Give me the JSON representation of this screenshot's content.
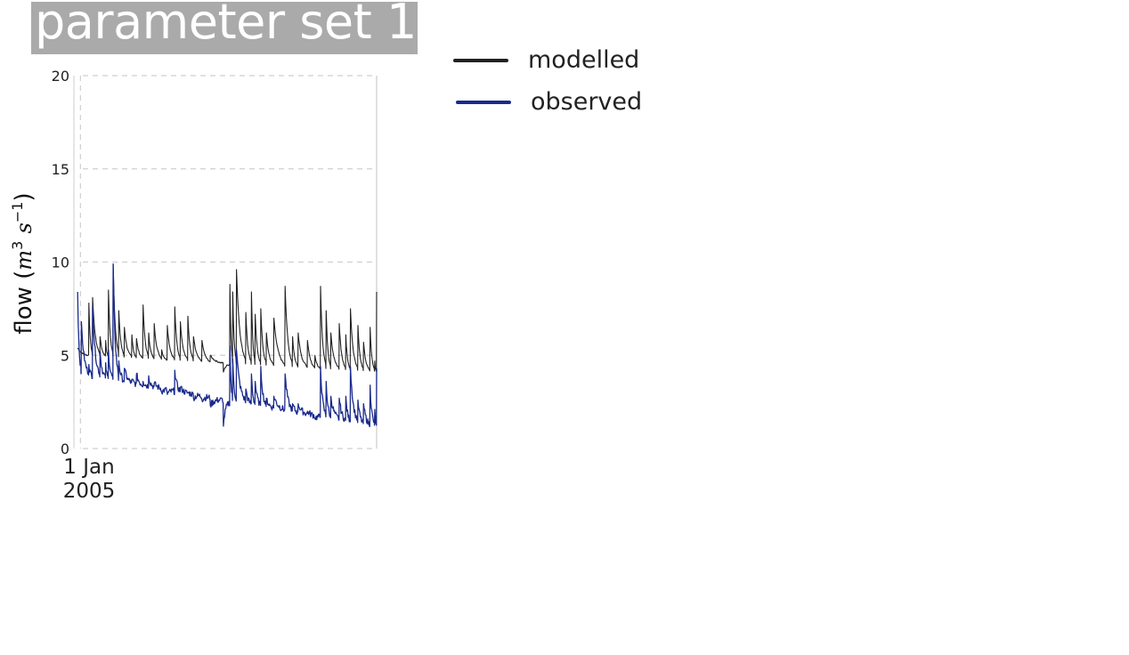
{
  "chart_data": {
    "type": "line",
    "title": "parameter set 1",
    "ylabel": {
      "prefix": "flow (",
      "unit1": "m",
      "exp1": "3",
      "unit2": "s",
      "exp2": "−1",
      "suffix": ")"
    },
    "ylim": [
      0,
      20
    ],
    "yticks": [
      0,
      5,
      10,
      15,
      20
    ],
    "xticks": [
      {
        "x": 3,
        "label": "1 Jan\n2005"
      }
    ],
    "xlim": [
      -4,
      320
    ],
    "grid": true,
    "legend_position": "outside-right",
    "series": [
      {
        "name": "modelled",
        "color": "#222222",
        "peaks": [
          [
            0,
            5.4
          ],
          [
            12,
            7.8
          ],
          [
            16,
            8.1
          ],
          [
            24,
            6.0
          ],
          [
            30,
            5.8
          ],
          [
            33,
            8.5
          ],
          [
            38,
            9.9
          ],
          [
            44,
            7.4
          ],
          [
            50,
            6.5
          ],
          [
            58,
            6.1
          ],
          [
            63,
            5.9
          ],
          [
            70,
            7.7
          ],
          [
            76,
            6.2
          ],
          [
            82,
            6.7
          ],
          [
            90,
            5.3
          ],
          [
            96,
            6.6
          ],
          [
            104,
            7.6
          ],
          [
            110,
            6.8
          ],
          [
            118,
            7.1
          ],
          [
            124,
            6.0
          ],
          [
            133,
            5.8
          ],
          [
            142,
            5.0
          ],
          [
            156,
            4.1
          ],
          [
            163,
            8.8
          ],
          [
            166,
            8.4
          ],
          [
            170,
            9.6
          ],
          [
            180,
            7.3
          ],
          [
            186,
            8.4
          ],
          [
            190,
            7.2
          ],
          [
            196,
            7.5
          ],
          [
            202,
            6.2
          ],
          [
            210,
            7.0
          ],
          [
            222,
            8.7
          ],
          [
            230,
            6.0
          ],
          [
            236,
            6.2
          ],
          [
            246,
            5.8
          ],
          [
            254,
            5.0
          ],
          [
            260,
            8.7
          ],
          [
            266,
            7.4
          ],
          [
            271,
            6.2
          ],
          [
            280,
            6.7
          ],
          [
            287,
            6.1
          ],
          [
            292,
            7.5
          ],
          [
            300,
            6.6
          ],
          [
            306,
            5.7
          ],
          [
            313,
            6.5
          ],
          [
            318,
            4.7
          ],
          [
            320,
            8.4
          ]
        ],
        "base_start": 5.0,
        "base_end": 4.1
      },
      {
        "name": "observed",
        "color": "#1a2a8c",
        "peaks": [
          [
            0,
            8.4
          ],
          [
            4,
            6.8
          ],
          [
            12,
            4.5
          ],
          [
            16,
            7.6
          ],
          [
            24,
            5.2
          ],
          [
            30,
            4.6
          ],
          [
            33,
            5.3
          ],
          [
            38,
            9.9
          ],
          [
            44,
            4.7
          ],
          [
            50,
            4.3
          ],
          [
            58,
            3.7
          ],
          [
            63,
            4.0
          ],
          [
            70,
            3.6
          ],
          [
            76,
            3.9
          ],
          [
            82,
            3.5
          ],
          [
            90,
            3.0
          ],
          [
            96,
            2.9
          ],
          [
            104,
            4.2
          ],
          [
            110,
            3.3
          ],
          [
            118,
            3.0
          ],
          [
            124,
            2.7
          ],
          [
            133,
            2.6
          ],
          [
            142,
            2.3
          ],
          [
            156,
            1.2
          ],
          [
            163,
            5.5
          ],
          [
            166,
            4.8
          ],
          [
            170,
            5.3
          ],
          [
            180,
            3.2
          ],
          [
            186,
            4.0
          ],
          [
            190,
            3.6
          ],
          [
            196,
            4.4
          ],
          [
            202,
            2.7
          ],
          [
            210,
            2.8
          ],
          [
            222,
            4.0
          ],
          [
            230,
            2.4
          ],
          [
            236,
            2.4
          ],
          [
            246,
            2.0
          ],
          [
            254,
            1.6
          ],
          [
            260,
            4.4
          ],
          [
            266,
            3.6
          ],
          [
            271,
            2.8
          ],
          [
            280,
            2.7
          ],
          [
            287,
            2.8
          ],
          [
            292,
            4.4
          ],
          [
            300,
            2.6
          ],
          [
            306,
            2.4
          ],
          [
            313,
            3.4
          ],
          [
            318,
            2.1
          ],
          [
            320,
            4.3
          ]
        ],
        "base_start": 4.0,
        "base_end": 1.2
      }
    ]
  }
}
